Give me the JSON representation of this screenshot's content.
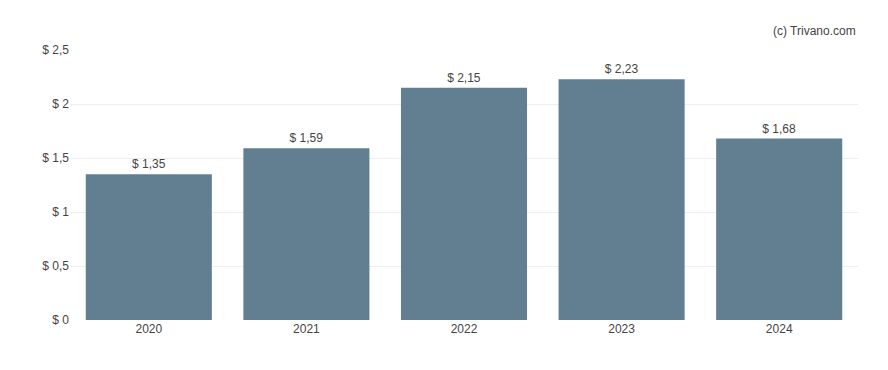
{
  "chart_data": {
    "type": "bar",
    "categories": [
      "2020",
      "2021",
      "2022",
      "2023",
      "2024"
    ],
    "values": [
      1.35,
      1.59,
      2.15,
      2.23,
      1.68
    ],
    "value_labels": [
      "$ 1,35",
      "$ 1,59",
      "$ 2,15",
      "$ 2,23",
      "$ 1,68"
    ],
    "data_labels": true,
    "color": "#627f91",
    "ylim": [
      0,
      2.5
    ],
    "yticks": [
      {
        "value": 0,
        "label": "$ 0"
      },
      {
        "value": 0.5,
        "label": "$ 0,5"
      },
      {
        "value": 1.0,
        "label": "$ 1"
      },
      {
        "value": 1.5,
        "label": "$ 1,5"
      },
      {
        "value": 2.0,
        "label": "$ 2"
      },
      {
        "value": 2.5,
        "label": "$ 2,5"
      }
    ],
    "grid": true,
    "annotations": [
      "(c) Trivano.com"
    ]
  }
}
